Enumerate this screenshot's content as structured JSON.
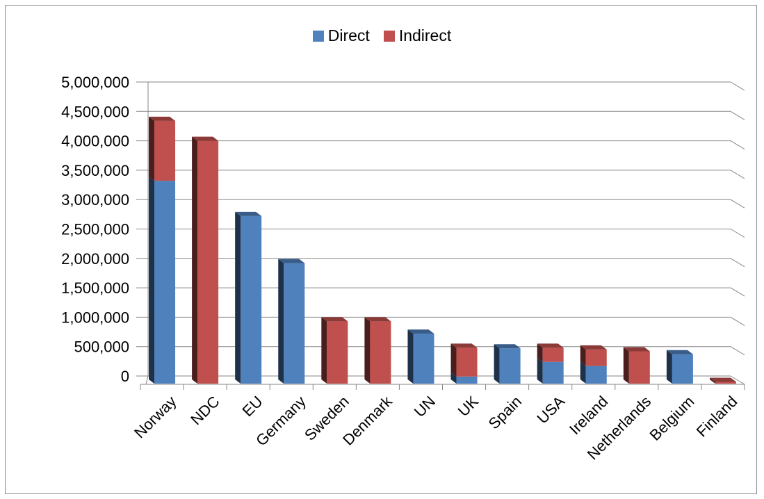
{
  "chart_data": {
    "type": "bar",
    "stacked": true,
    "three_d": true,
    "categories": [
      "Norway",
      "NDC",
      "EU",
      "Germany",
      "Sweden",
      "Denmark",
      "UN",
      "UK",
      "Spain",
      "USA",
      "Ireland",
      "Netherlands",
      "Belgium",
      "Finland"
    ],
    "series": [
      {
        "name": "Direct",
        "color": "#4F81BD",
        "values": [
          3450000,
          0,
          2850000,
          2050000,
          0,
          0,
          850000,
          120000,
          600000,
          370000,
          300000,
          0,
          500000,
          0
        ]
      },
      {
        "name": "Indirect",
        "color": "#C0504D",
        "values": [
          1020000,
          4130000,
          0,
          0,
          1060000,
          1060000,
          0,
          490000,
          0,
          240000,
          280000,
          550000,
          0,
          30000
        ]
      }
    ],
    "y_ticks": [
      "0",
      "500,000",
      "1,000,000",
      "1,500,000",
      "2,000,000",
      "2,500,000",
      "3,000,000",
      "3,500,000",
      "4,000,000",
      "4,500,000",
      "5,000,000"
    ],
    "ylim": [
      0,
      5000000
    ],
    "grid": true,
    "legend_position": "top",
    "title": "",
    "xlabel": "",
    "ylabel": ""
  }
}
